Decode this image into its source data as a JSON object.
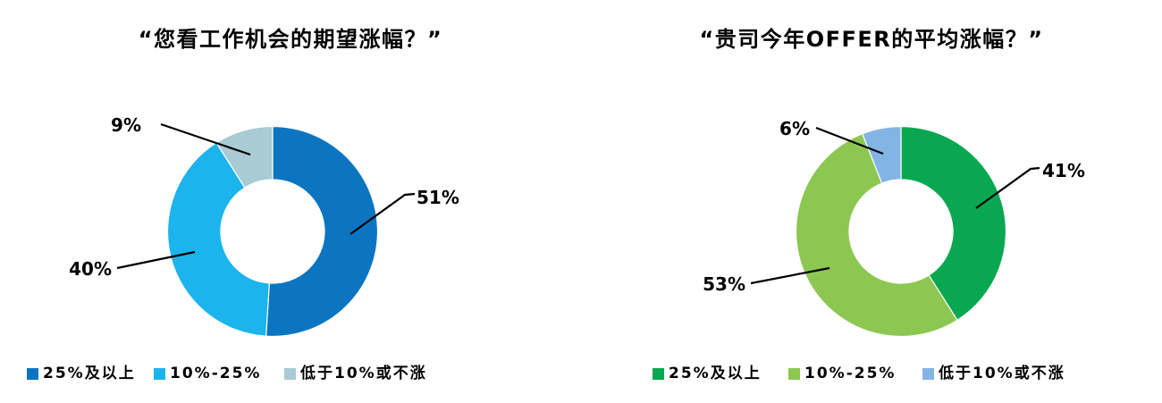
{
  "page": {
    "background": "#FFFFFF"
  },
  "chart_data": [
    {
      "type": "pie",
      "subtype": "donut",
      "title": "“您看工作机会的期望涨幅？”",
      "categories": [
        "25%及以上",
        "10%-25%",
        "低于10%或不涨"
      ],
      "values": [
        51,
        40,
        9
      ],
      "value_labels": [
        "51%",
        "40%",
        "9%"
      ],
      "colors": [
        "#0B75C1",
        "#1BB4EC",
        "#A9CBD3"
      ],
      "legend_position": "bottom",
      "start_angle_deg": 0,
      "direction": "clockwise",
      "leader_line_color": "#000000",
      "label_color": "#000000"
    },
    {
      "type": "pie",
      "subtype": "donut",
      "title": "“贵司今年OFFER的平均涨幅？”",
      "categories": [
        "25%及以上",
        "10%-25%",
        "低于10%或不涨"
      ],
      "values": [
        41,
        53,
        6
      ],
      "value_labels": [
        "41%",
        "53%",
        "6%"
      ],
      "colors": [
        "#09A850",
        "#8CC751",
        "#82B4E6"
      ],
      "legend_position": "bottom",
      "start_angle_deg": 0,
      "direction": "clockwise",
      "leader_line_color": "#000000",
      "label_color": "#000000"
    }
  ]
}
